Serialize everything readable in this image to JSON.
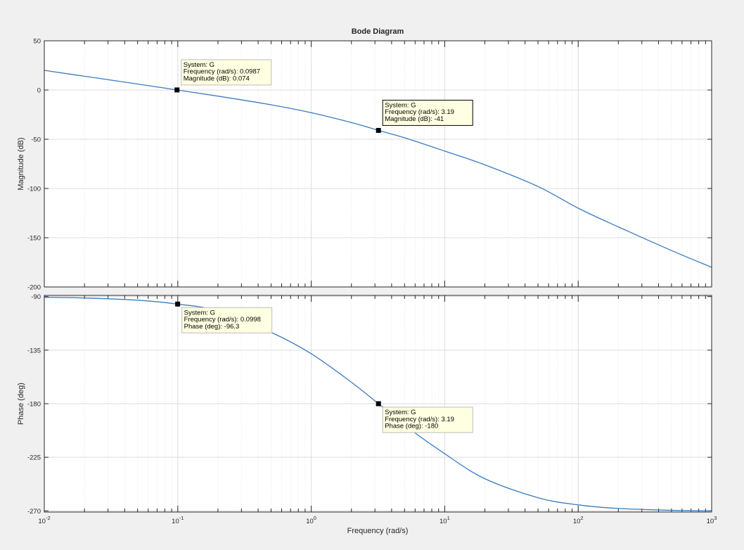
{
  "chart_data": {
    "type": "line",
    "title": "Bode Diagram",
    "xlabel": "Frequency  (rad/s)",
    "x_scale": "log",
    "xlim": [
      0.01,
      1000
    ],
    "x_tick_base": "10",
    "x_tick_exponents": [
      "-2",
      "-1",
      "0",
      "1",
      "2",
      "3"
    ],
    "grid": true,
    "colors": {
      "line": "#3a7bbf",
      "background": "#f0f0f0",
      "plot_bg": "#ffffff",
      "datatip_bg": "#ffffe1"
    },
    "panels": [
      {
        "id": "magnitude",
        "ylabel": "Magnitude (dB)",
        "ylim": [
          -200,
          50
        ],
        "yticks": [
          50,
          0,
          -50,
          -100,
          -150,
          -200
        ],
        "ytick_labels": [
          "50",
          "0",
          "-50",
          "-100",
          "-150",
          "-200"
        ],
        "series": [
          {
            "x": [
              0.01,
              0.02,
              0.05,
              0.0987,
              0.2,
              0.5,
              1,
              2,
              3.19,
              5,
              10,
              20,
              50,
              100,
              200,
              500,
              1000
            ],
            "y": [
              20,
              14,
              6.1,
              0.074,
              -6.2,
              -15,
              -23,
              -33,
              -41,
              -48.5,
              -62,
              -76,
              -98,
              -120,
              -139,
              -163,
              -180
            ]
          }
        ],
        "datatips": [
          {
            "x": 0.0987,
            "y": 0.074,
            "lines": [
              "System: G",
              "Frequency (rad/s): 0.0987",
              "Magnitude (dB): 0.074"
            ],
            "active": false
          },
          {
            "x": 3.19,
            "y": -41,
            "lines": [
              "System: G",
              "Frequency (rad/s): 3.19",
              "Magnitude (dB): -41"
            ],
            "active": true
          }
        ]
      },
      {
        "id": "phase",
        "ylabel": "Phase (deg)",
        "ylim": [
          -271,
          -89
        ],
        "yticks": [
          -90,
          -135,
          -180,
          -225,
          -270
        ],
        "ytick_labels": [
          "-90",
          "-135",
          "-180",
          "-225",
          "-270"
        ],
        "series": [
          {
            "x": [
              0.01,
              0.02,
              0.05,
              0.0998,
              0.2,
              0.5,
              1,
              2,
              3.19,
              5,
              10,
              20,
              50,
              100,
              200,
              500,
              1000
            ],
            "y": [
              -90.6,
              -91.2,
              -93,
              -96.3,
              -102,
              -120,
              -138,
              -162,
              -180,
              -198,
              -222,
              -243,
              -259,
              -265,
              -268,
              -269.5,
              -270
            ]
          }
        ],
        "datatips": [
          {
            "x": 0.0998,
            "y": -96.3,
            "lines": [
              "System: G",
              "Frequency (rad/s): 0.0998",
              "Phase (deg): -96.3"
            ],
            "active": false
          },
          {
            "x": 3.19,
            "y": -180,
            "lines": [
              "System: G",
              "Frequency (rad/s): 3.19",
              "Phase (deg): -180"
            ],
            "active": false
          }
        ]
      }
    ]
  }
}
